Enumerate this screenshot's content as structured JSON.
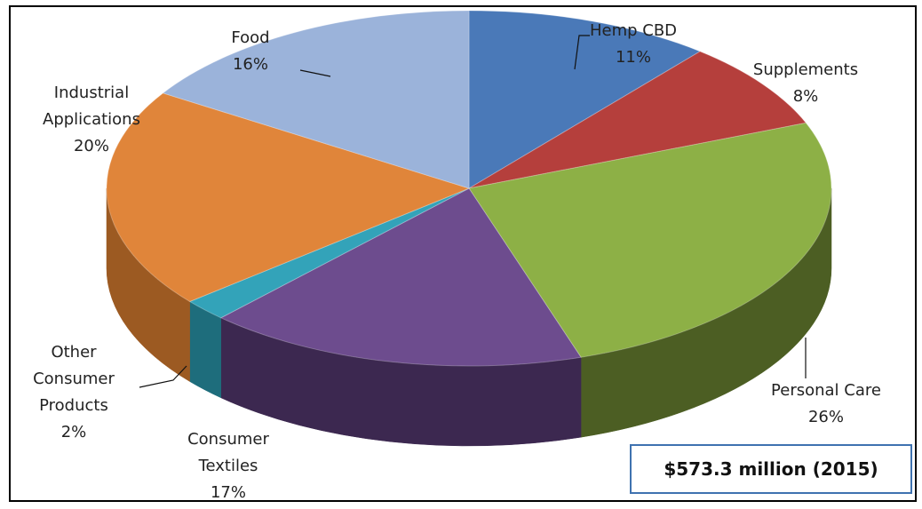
{
  "chart_data": {
    "type": "pie",
    "title": "",
    "slices": [
      {
        "label_lines": [
          "Hemp  CBD",
          "11%"
        ],
        "value": 11,
        "color": "#4a79b8",
        "side_color": "#2f5180"
      },
      {
        "label_lines": [
          "Supplements",
          "8%"
        ],
        "value": 8,
        "color": "#b53f3c",
        "side_color": "#7a2724"
      },
      {
        "label_lines": [
          "Personal Care",
          "26%"
        ],
        "value": 26,
        "color": "#8db046",
        "side_color": "#4c5e23"
      },
      {
        "label_lines": [
          "Consumer",
          "Textiles",
          "17%"
        ],
        "value": 17,
        "color": "#6d4c8e",
        "side_color": "#3c2850"
      },
      {
        "label_lines": [
          "Other",
          "Consumer",
          "Products",
          "2%"
        ],
        "value": 2,
        "color": "#33a3b9",
        "side_color": "#1e6d7c"
      },
      {
        "label_lines": [
          "Industrial",
          "Applications",
          "20%"
        ],
        "value": 20,
        "color": "#e0853a",
        "side_color": "#9c5a22"
      },
      {
        "label_lines": [
          "Food",
          "16%"
        ],
        "value": 16,
        "color": "#9bb3da",
        "side_color": "#6a80a6"
      }
    ],
    "start_angle_deg": -90,
    "three_d": true
  },
  "total_box": "$573.3 million (2015)"
}
